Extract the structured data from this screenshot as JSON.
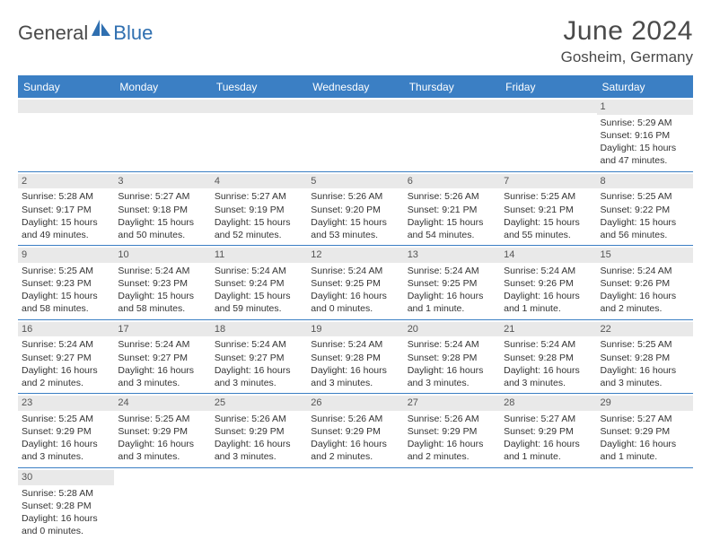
{
  "brand": {
    "part1": "General",
    "part2": "Blue"
  },
  "title": "June 2024",
  "location": "Gosheim, Germany",
  "colors": {
    "header_bg": "#3b7fc4",
    "header_text": "#ffffff",
    "daynum_bg": "#e9e9e9",
    "body_text": "#333333",
    "brand_gray": "#4a4a4a",
    "brand_blue": "#2f6fb0",
    "page_bg": "#ffffff"
  },
  "day_headers": [
    "Sunday",
    "Monday",
    "Tuesday",
    "Wednesday",
    "Thursday",
    "Friday",
    "Saturday"
  ],
  "weeks": [
    [
      {
        "blank": true
      },
      {
        "blank": true
      },
      {
        "blank": true
      },
      {
        "blank": true
      },
      {
        "blank": true
      },
      {
        "blank": true
      },
      {
        "day": "1",
        "sunrise": "Sunrise: 5:29 AM",
        "sunset": "Sunset: 9:16 PM",
        "daylight1": "Daylight: 15 hours",
        "daylight2": "and 47 minutes."
      }
    ],
    [
      {
        "day": "2",
        "sunrise": "Sunrise: 5:28 AM",
        "sunset": "Sunset: 9:17 PM",
        "daylight1": "Daylight: 15 hours",
        "daylight2": "and 49 minutes."
      },
      {
        "day": "3",
        "sunrise": "Sunrise: 5:27 AM",
        "sunset": "Sunset: 9:18 PM",
        "daylight1": "Daylight: 15 hours",
        "daylight2": "and 50 minutes."
      },
      {
        "day": "4",
        "sunrise": "Sunrise: 5:27 AM",
        "sunset": "Sunset: 9:19 PM",
        "daylight1": "Daylight: 15 hours",
        "daylight2": "and 52 minutes."
      },
      {
        "day": "5",
        "sunrise": "Sunrise: 5:26 AM",
        "sunset": "Sunset: 9:20 PM",
        "daylight1": "Daylight: 15 hours",
        "daylight2": "and 53 minutes."
      },
      {
        "day": "6",
        "sunrise": "Sunrise: 5:26 AM",
        "sunset": "Sunset: 9:21 PM",
        "daylight1": "Daylight: 15 hours",
        "daylight2": "and 54 minutes."
      },
      {
        "day": "7",
        "sunrise": "Sunrise: 5:25 AM",
        "sunset": "Sunset: 9:21 PM",
        "daylight1": "Daylight: 15 hours",
        "daylight2": "and 55 minutes."
      },
      {
        "day": "8",
        "sunrise": "Sunrise: 5:25 AM",
        "sunset": "Sunset: 9:22 PM",
        "daylight1": "Daylight: 15 hours",
        "daylight2": "and 56 minutes."
      }
    ],
    [
      {
        "day": "9",
        "sunrise": "Sunrise: 5:25 AM",
        "sunset": "Sunset: 9:23 PM",
        "daylight1": "Daylight: 15 hours",
        "daylight2": "and 58 minutes."
      },
      {
        "day": "10",
        "sunrise": "Sunrise: 5:24 AM",
        "sunset": "Sunset: 9:23 PM",
        "daylight1": "Daylight: 15 hours",
        "daylight2": "and 58 minutes."
      },
      {
        "day": "11",
        "sunrise": "Sunrise: 5:24 AM",
        "sunset": "Sunset: 9:24 PM",
        "daylight1": "Daylight: 15 hours",
        "daylight2": "and 59 minutes."
      },
      {
        "day": "12",
        "sunrise": "Sunrise: 5:24 AM",
        "sunset": "Sunset: 9:25 PM",
        "daylight1": "Daylight: 16 hours",
        "daylight2": "and 0 minutes."
      },
      {
        "day": "13",
        "sunrise": "Sunrise: 5:24 AM",
        "sunset": "Sunset: 9:25 PM",
        "daylight1": "Daylight: 16 hours",
        "daylight2": "and 1 minute."
      },
      {
        "day": "14",
        "sunrise": "Sunrise: 5:24 AM",
        "sunset": "Sunset: 9:26 PM",
        "daylight1": "Daylight: 16 hours",
        "daylight2": "and 1 minute."
      },
      {
        "day": "15",
        "sunrise": "Sunrise: 5:24 AM",
        "sunset": "Sunset: 9:26 PM",
        "daylight1": "Daylight: 16 hours",
        "daylight2": "and 2 minutes."
      }
    ],
    [
      {
        "day": "16",
        "sunrise": "Sunrise: 5:24 AM",
        "sunset": "Sunset: 9:27 PM",
        "daylight1": "Daylight: 16 hours",
        "daylight2": "and 2 minutes."
      },
      {
        "day": "17",
        "sunrise": "Sunrise: 5:24 AM",
        "sunset": "Sunset: 9:27 PM",
        "daylight1": "Daylight: 16 hours",
        "daylight2": "and 3 minutes."
      },
      {
        "day": "18",
        "sunrise": "Sunrise: 5:24 AM",
        "sunset": "Sunset: 9:27 PM",
        "daylight1": "Daylight: 16 hours",
        "daylight2": "and 3 minutes."
      },
      {
        "day": "19",
        "sunrise": "Sunrise: 5:24 AM",
        "sunset": "Sunset: 9:28 PM",
        "daylight1": "Daylight: 16 hours",
        "daylight2": "and 3 minutes."
      },
      {
        "day": "20",
        "sunrise": "Sunrise: 5:24 AM",
        "sunset": "Sunset: 9:28 PM",
        "daylight1": "Daylight: 16 hours",
        "daylight2": "and 3 minutes."
      },
      {
        "day": "21",
        "sunrise": "Sunrise: 5:24 AM",
        "sunset": "Sunset: 9:28 PM",
        "daylight1": "Daylight: 16 hours",
        "daylight2": "and 3 minutes."
      },
      {
        "day": "22",
        "sunrise": "Sunrise: 5:25 AM",
        "sunset": "Sunset: 9:28 PM",
        "daylight1": "Daylight: 16 hours",
        "daylight2": "and 3 minutes."
      }
    ],
    [
      {
        "day": "23",
        "sunrise": "Sunrise: 5:25 AM",
        "sunset": "Sunset: 9:29 PM",
        "daylight1": "Daylight: 16 hours",
        "daylight2": "and 3 minutes."
      },
      {
        "day": "24",
        "sunrise": "Sunrise: 5:25 AM",
        "sunset": "Sunset: 9:29 PM",
        "daylight1": "Daylight: 16 hours",
        "daylight2": "and 3 minutes."
      },
      {
        "day": "25",
        "sunrise": "Sunrise: 5:26 AM",
        "sunset": "Sunset: 9:29 PM",
        "daylight1": "Daylight: 16 hours",
        "daylight2": "and 3 minutes."
      },
      {
        "day": "26",
        "sunrise": "Sunrise: 5:26 AM",
        "sunset": "Sunset: 9:29 PM",
        "daylight1": "Daylight: 16 hours",
        "daylight2": "and 2 minutes."
      },
      {
        "day": "27",
        "sunrise": "Sunrise: 5:26 AM",
        "sunset": "Sunset: 9:29 PM",
        "daylight1": "Daylight: 16 hours",
        "daylight2": "and 2 minutes."
      },
      {
        "day": "28",
        "sunrise": "Sunrise: 5:27 AM",
        "sunset": "Sunset: 9:29 PM",
        "daylight1": "Daylight: 16 hours",
        "daylight2": "and 1 minute."
      },
      {
        "day": "29",
        "sunrise": "Sunrise: 5:27 AM",
        "sunset": "Sunset: 9:29 PM",
        "daylight1": "Daylight: 16 hours",
        "daylight2": "and 1 minute."
      }
    ],
    [
      {
        "day": "30",
        "sunrise": "Sunrise: 5:28 AM",
        "sunset": "Sunset: 9:28 PM",
        "daylight1": "Daylight: 16 hours",
        "daylight2": "and 0 minutes."
      },
      {
        "blank": true
      },
      {
        "blank": true
      },
      {
        "blank": true
      },
      {
        "blank": true
      },
      {
        "blank": true
      },
      {
        "blank": true
      }
    ]
  ]
}
